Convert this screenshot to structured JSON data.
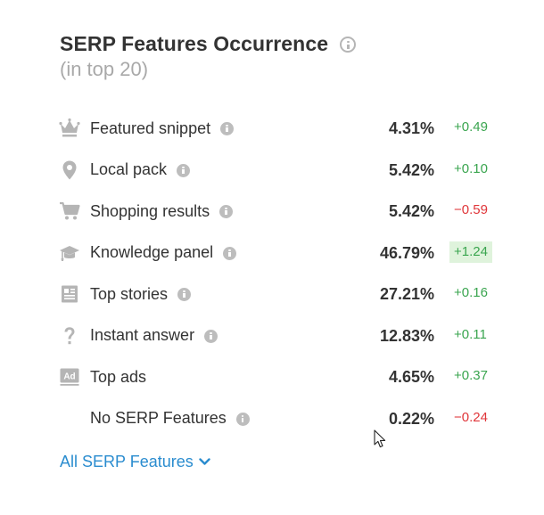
{
  "header": {
    "title": "SERP Features Occurrence",
    "subtitle": "(in top 20)"
  },
  "rows": [
    {
      "icon": "crown-icon",
      "label": "Featured snippet",
      "percent": "4.31%",
      "change": "+0.49",
      "trend": "positive"
    },
    {
      "icon": "map-pin-icon",
      "label": "Local pack",
      "percent": "5.42%",
      "change": "+0.10",
      "trend": "positive"
    },
    {
      "icon": "shopping-cart-icon",
      "label": "Shopping results",
      "percent": "5.42%",
      "change": "−0.59",
      "trend": "negative"
    },
    {
      "icon": "graduation-cap-icon",
      "label": "Knowledge panel",
      "percent": "46.79%",
      "change": "+1.24",
      "trend": "positive",
      "highlighted": true
    },
    {
      "icon": "newspaper-icon",
      "label": "Top stories",
      "percent": "27.21%",
      "change": "+0.16",
      "trend": "positive"
    },
    {
      "icon": "question-mark-icon",
      "label": "Instant answer",
      "percent": "12.83%",
      "change": "+0.11",
      "trend": "positive"
    },
    {
      "icon": "ad-badge-icon",
      "label": "Top ads",
      "percent": "4.65%",
      "change": "+0.37",
      "trend": "positive"
    },
    {
      "icon": "",
      "label": "No SERP Features",
      "percent": "0.22%",
      "change": "−0.24",
      "trend": "negative"
    }
  ],
  "footer": {
    "link_label": "All SERP Features"
  },
  "colors": {
    "text": "#333333",
    "muted": "#a9a9a9",
    "icon": "#b5b5b5",
    "positive": "#3aa54f",
    "negative": "#e0363a",
    "highlight_bg": "#dff3dc",
    "link": "#2a8ccf"
  }
}
